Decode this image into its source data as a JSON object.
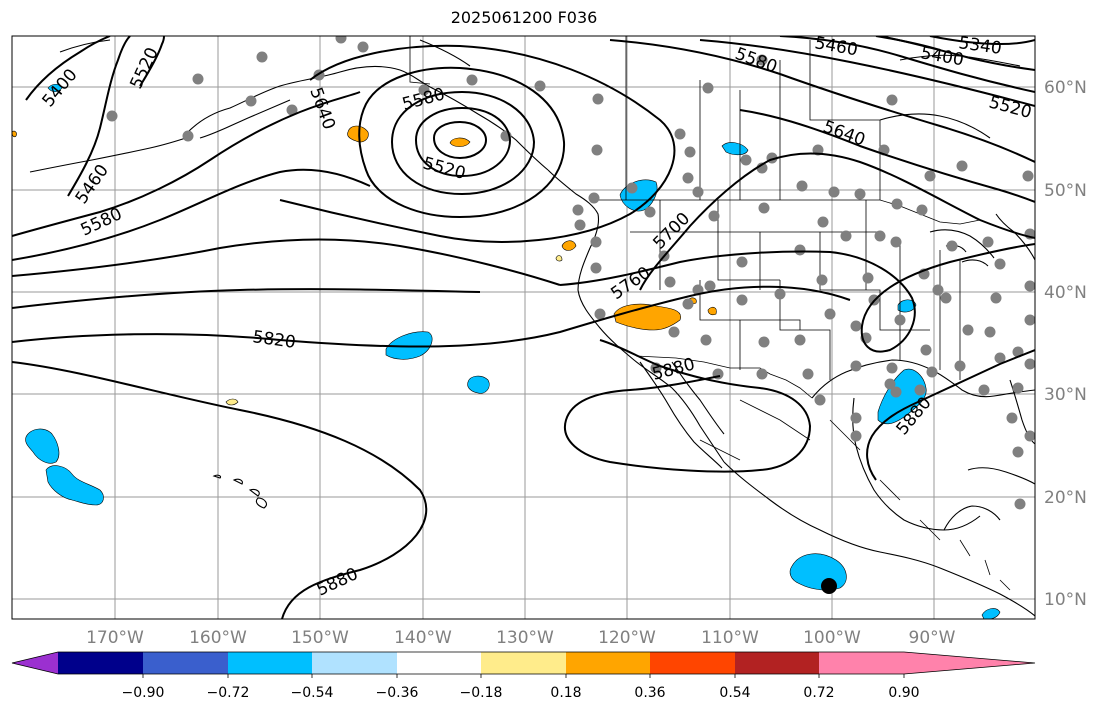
{
  "title": "2025061200 F036",
  "latitude_labels": [
    "60°N",
    "50°N",
    "40°N",
    "30°N",
    "20°N",
    "10°N"
  ],
  "longitude_labels": [
    "170°W",
    "160°W",
    "150°W",
    "140°W",
    "130°W",
    "120°W",
    "110°W",
    "100°W",
    "90°W"
  ],
  "contour_labels": [
    "5400",
    "5520",
    "5460",
    "5580",
    "5640",
    "5580",
    "5520",
    "5460",
    "5400",
    "5340",
    "5580",
    "5640",
    "5520",
    "5700",
    "5760",
    "5820",
    "5880",
    "5880",
    "5880"
  ],
  "colorbar": {
    "tick_labels": [
      "−0.90",
      "−0.72",
      "−0.54",
      "−0.36",
      "−0.18",
      "0.18",
      "0.36",
      "0.54",
      "0.72",
      "0.90"
    ],
    "colors": [
      "#9b30d0",
      "#00008b",
      "#3a5fcd",
      "#00bfff",
      "#b0e2ff",
      "#ffffff",
      "#ffec8b",
      "#ffa500",
      "#ff4500",
      "#b22222",
      "#ff82ab"
    ]
  },
  "colors": {
    "frame": "#000000",
    "grid": "#808080",
    "station": "#808080",
    "negative_fill": "#00bfff",
    "positive_fill": "#ffa500",
    "positive_light_fill": "#ffec8b"
  }
}
